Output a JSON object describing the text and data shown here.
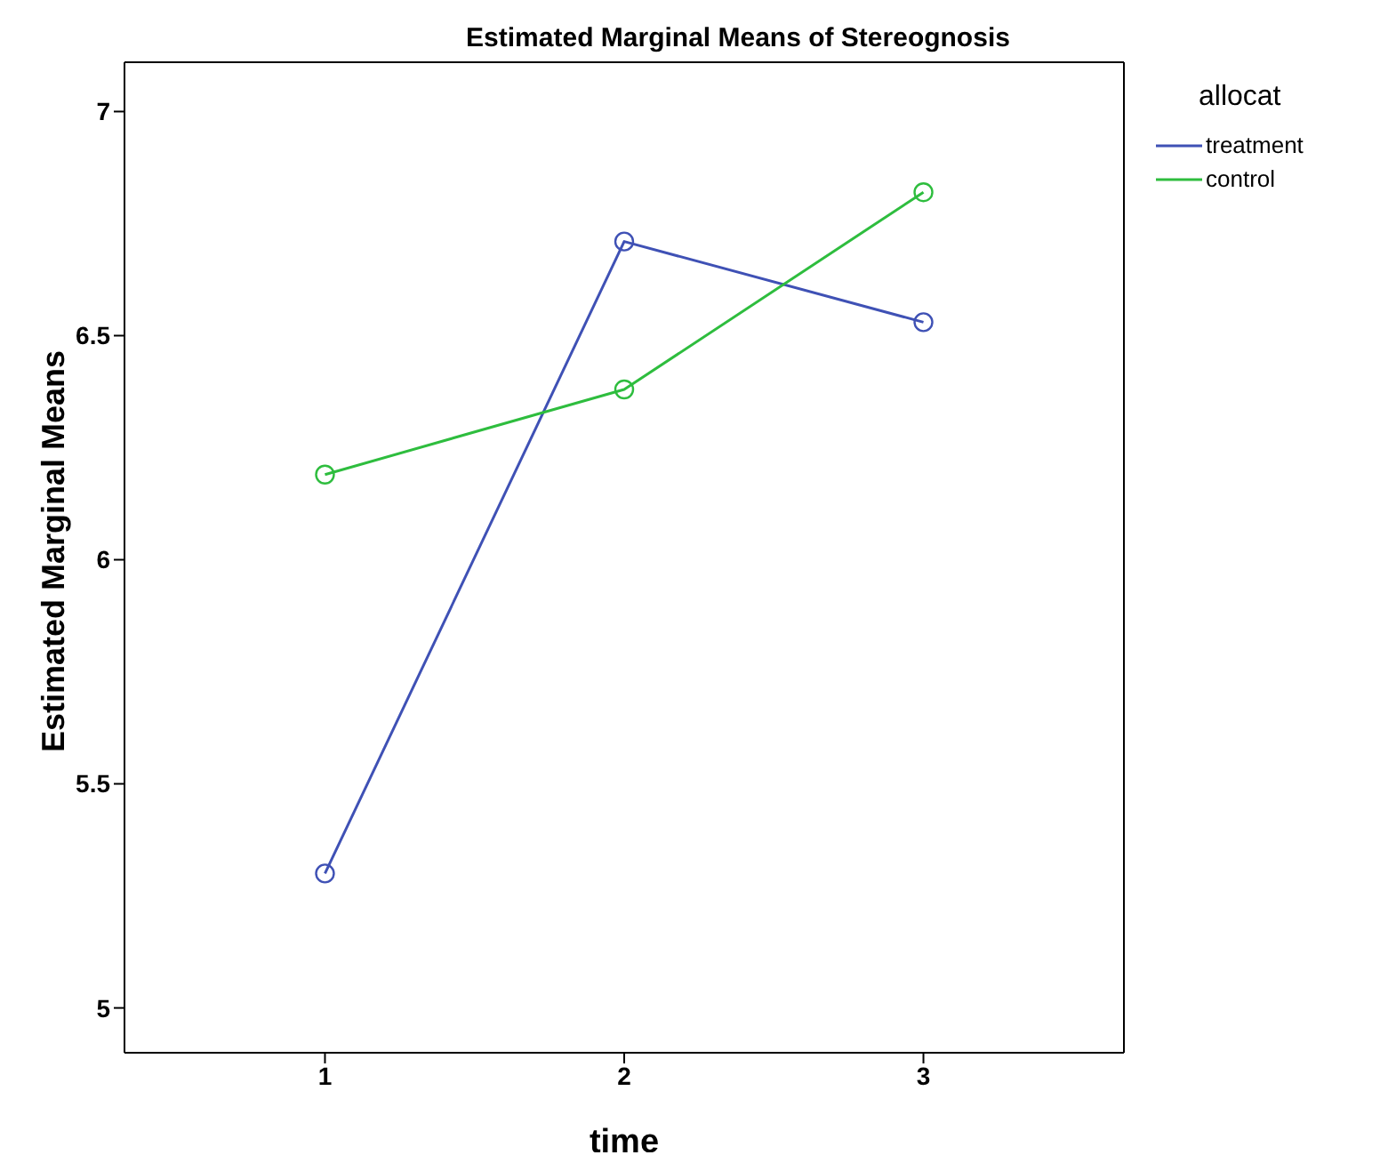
{
  "chart_data": {
    "type": "line",
    "title": "Estimated Marginal Means of Stereognosis",
    "xlabel": "time",
    "ylabel": "Estimated Marginal Means",
    "legend_title": "allocat",
    "x": [
      1,
      2,
      3
    ],
    "series": [
      {
        "name": "treatment",
        "color": "#3f51b5",
        "values": [
          5.3,
          6.71,
          6.53
        ]
      },
      {
        "name": "control",
        "color": "#2ebd3e",
        "values": [
          6.19,
          6.38,
          6.82
        ]
      }
    ],
    "xlim": [
      0.33,
      3.67
    ],
    "xticks": [
      1,
      2,
      3
    ],
    "ylim": [
      4.9,
      7.11
    ],
    "yticks": [
      5,
      5.5,
      6,
      6.5,
      7
    ],
    "marker": "circle",
    "legend": "top right",
    "grid": false
  }
}
